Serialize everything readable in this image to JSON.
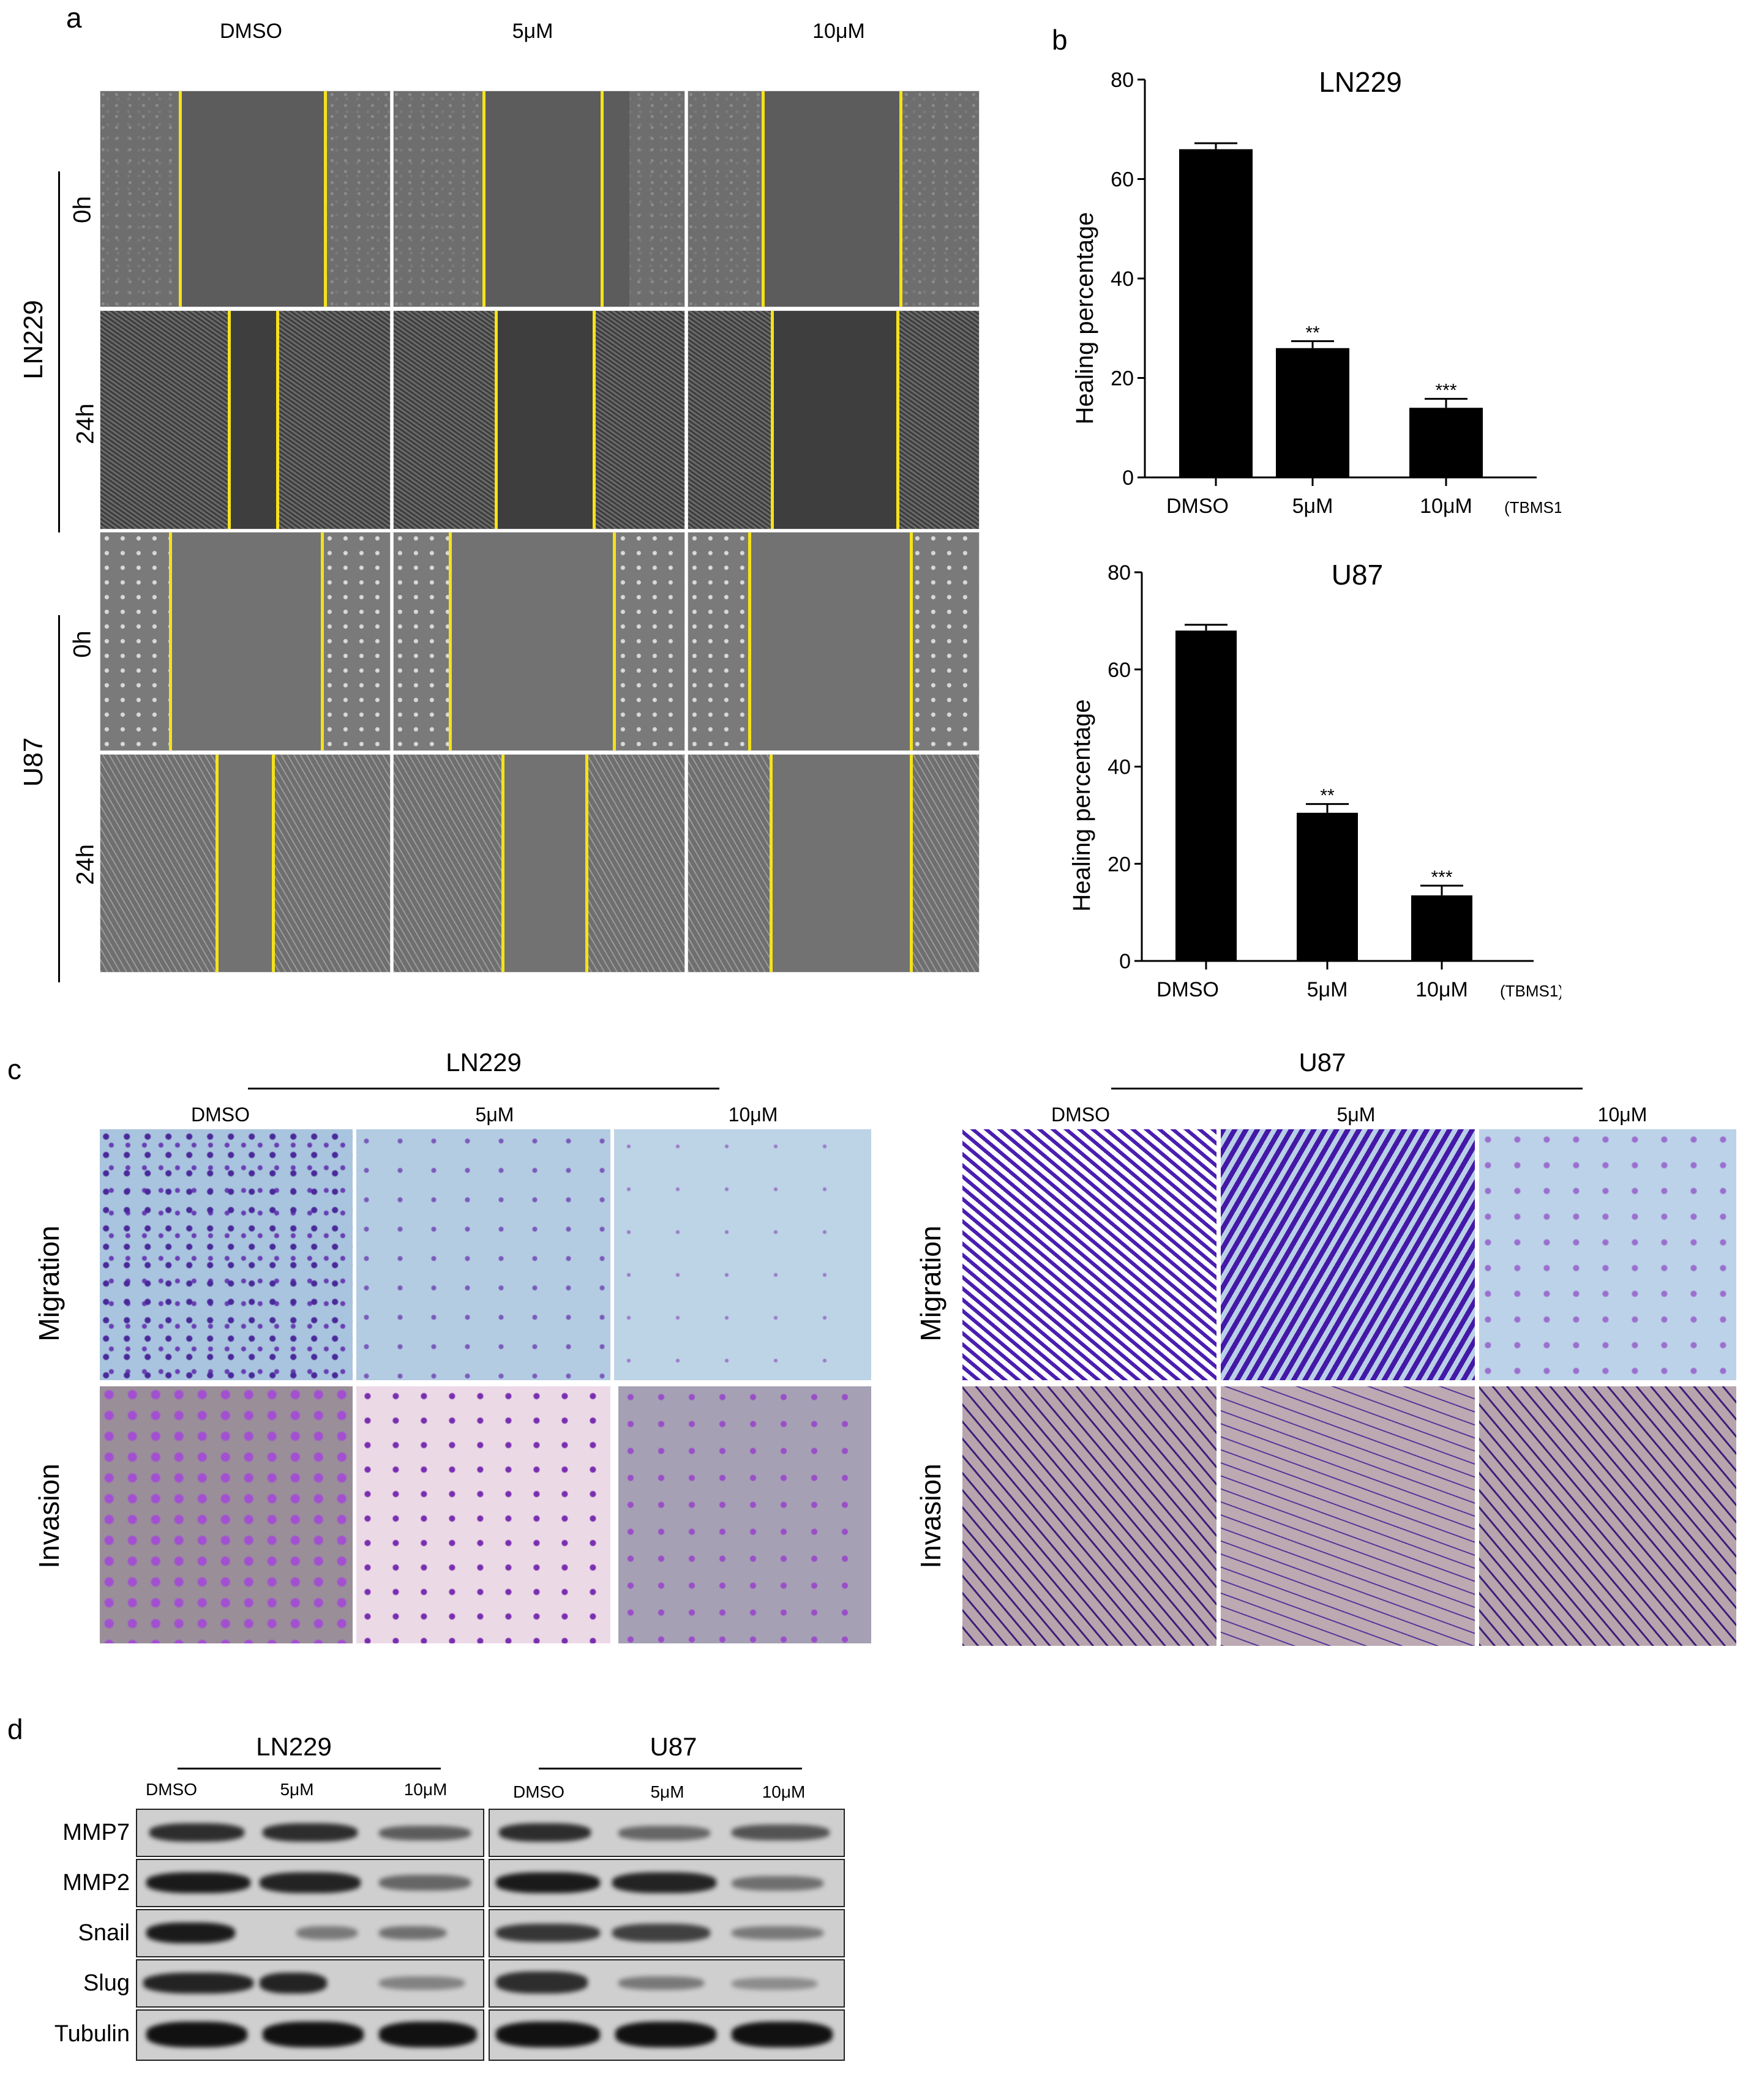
{
  "panels": {
    "a": "a",
    "b": "b",
    "c": "c",
    "d": "d"
  },
  "panel_a": {
    "columns": [
      "DMSO",
      "5μM",
      "10μM"
    ],
    "cell_lines": [
      "LN229",
      "U87"
    ],
    "times": [
      "0h",
      "24h"
    ]
  },
  "panel_c": {
    "ln229": {
      "title": "LN229",
      "columns": [
        "DMSO",
        "5μM",
        "10μM"
      ]
    },
    "u87": {
      "title": "U87",
      "columns": [
        "DMSO",
        "5μM",
        "10μM"
      ]
    },
    "rows": [
      "Migration",
      "Invasion"
    ]
  },
  "panel_d": {
    "ln229": {
      "title": "LN229",
      "columns": [
        "DMSO",
        "5μM",
        "10μM"
      ]
    },
    "u87": {
      "title": "U87",
      "columns": [
        "DMSO",
        "5μM",
        "10μM"
      ]
    },
    "proteins": [
      "MMP7",
      "MMP2",
      "Snail",
      "Slug",
      "Tubulin"
    ]
  },
  "chart_data": [
    {
      "type": "bar",
      "title": "LN229",
      "categories": [
        "DMSO",
        "5μM",
        "10μM"
      ],
      "values": [
        66,
        26,
        14
      ],
      "errors": [
        1.2,
        1.4,
        1.8
      ],
      "significance": [
        "",
        "**",
        "***"
      ],
      "ylabel": "Healing percentage",
      "xlabel": "",
      "treatment_label": "(TBMS1)",
      "ylim": [
        0,
        80
      ],
      "yticks": [
        0,
        20,
        40,
        60,
        80
      ],
      "color": "#000000"
    },
    {
      "type": "bar",
      "title": "U87",
      "categories": [
        "DMSO",
        "5μM",
        "10μM"
      ],
      "values": [
        68,
        30.5,
        13.5
      ],
      "errors": [
        1.2,
        1.8,
        2.0
      ],
      "significance": [
        "",
        "**",
        "***"
      ],
      "ylabel": "Healing percentage",
      "xlabel": "",
      "treatment_label": "(TBMS1)",
      "ylim": [
        0,
        80
      ],
      "yticks": [
        0,
        20,
        40,
        60,
        80
      ],
      "color": "#000000"
    }
  ]
}
